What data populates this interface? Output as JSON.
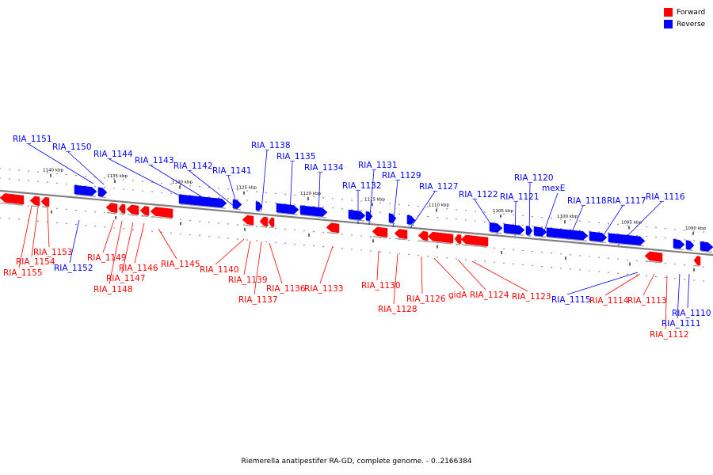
{
  "colors": {
    "forward": "#ff0000",
    "reverse": "#0000ff",
    "backbone": "#808080"
  },
  "legend": {
    "forward_label": "Forward",
    "reverse_label": "Reverse"
  },
  "caption": "Riemerella anatipestifer RA-GD, complete genome. - 0..2166384",
  "ticks": [
    "1140 kbp",
    "1135 kbp",
    "1130 kbp",
    "1125 kbp",
    "1120 kbp",
    "1115 kbp",
    "1110 kbp",
    "1105 kbp",
    "1100 kbp",
    "1095 kbp",
    "1090 kbp"
  ],
  "genes": [
    {
      "name": "RIA_1155",
      "strand": "forward"
    },
    {
      "name": "RIA_1154",
      "strand": "forward"
    },
    {
      "name": "RIA_1153",
      "strand": "forward"
    },
    {
      "name": "RIA_1152",
      "strand": "reverse"
    },
    {
      "name": "RIA_1151",
      "strand": "reverse"
    },
    {
      "name": "RIA_1150",
      "strand": "reverse"
    },
    {
      "name": "RIA_1149",
      "strand": "forward"
    },
    {
      "name": "RIA_1148",
      "strand": "forward"
    },
    {
      "name": "RIA_1147",
      "strand": "forward"
    },
    {
      "name": "RIA_1146",
      "strand": "forward"
    },
    {
      "name": "RIA_1145",
      "strand": "forward"
    },
    {
      "name": "RIA_1144",
      "strand": "reverse"
    },
    {
      "name": "RIA_1143",
      "strand": "reverse"
    },
    {
      "name": "RIA_1142",
      "strand": "reverse"
    },
    {
      "name": "RIA_1141",
      "strand": "reverse"
    },
    {
      "name": "RIA_1140",
      "strand": "forward"
    },
    {
      "name": "RIA_1139",
      "strand": "forward"
    },
    {
      "name": "RIA_1138",
      "strand": "reverse"
    },
    {
      "name": "RIA_1137",
      "strand": "forward"
    },
    {
      "name": "RIA_1136",
      "strand": "forward"
    },
    {
      "name": "RIA_1135",
      "strand": "reverse"
    },
    {
      "name": "RIA_1134",
      "strand": "reverse"
    },
    {
      "name": "RIA_1133",
      "strand": "forward"
    },
    {
      "name": "RIA_1132",
      "strand": "reverse"
    },
    {
      "name": "RIA_1131",
      "strand": "reverse"
    },
    {
      "name": "RIA_1130",
      "strand": "forward"
    },
    {
      "name": "RIA_1129",
      "strand": "reverse"
    },
    {
      "name": "RIA_1128",
      "strand": "forward"
    },
    {
      "name": "RIA_1127",
      "strand": "reverse"
    },
    {
      "name": "RIA_1126",
      "strand": "forward"
    },
    {
      "name": "gidA",
      "strand": "forward"
    },
    {
      "name": "RIA_1124",
      "strand": "forward"
    },
    {
      "name": "RIA_1123",
      "strand": "forward"
    },
    {
      "name": "RIA_1122",
      "strand": "reverse"
    },
    {
      "name": "RIA_1121",
      "strand": "reverse"
    },
    {
      "name": "RIA_1120",
      "strand": "reverse"
    },
    {
      "name": "mexE",
      "strand": "reverse"
    },
    {
      "name": "RIA_1118",
      "strand": "reverse"
    },
    {
      "name": "RIA_1117",
      "strand": "reverse"
    },
    {
      "name": "RIA_1116",
      "strand": "reverse"
    },
    {
      "name": "RIA_1115",
      "strand": "reverse"
    },
    {
      "name": "RIA_1114",
      "strand": "forward"
    },
    {
      "name": "RIA_1113",
      "strand": "forward"
    },
    {
      "name": "RIA_1112",
      "strand": "forward"
    },
    {
      "name": "RIA_1111",
      "strand": "reverse"
    },
    {
      "name": "RIA_1110",
      "strand": "reverse"
    }
  ]
}
